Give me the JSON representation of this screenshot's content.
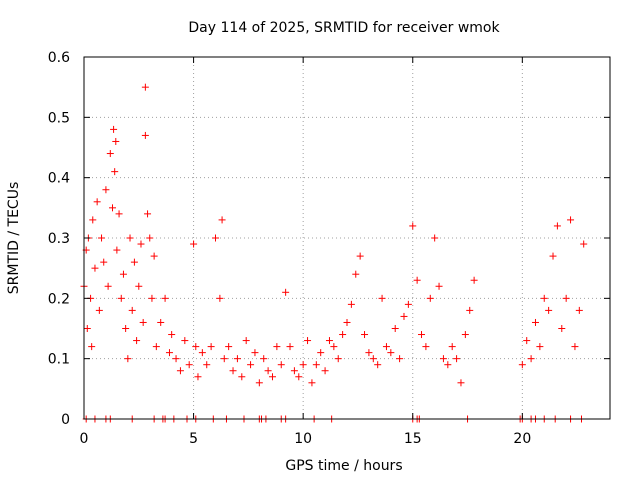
{
  "chart_data": {
    "type": "scatter",
    "title": "Day 114 of 2025, SRMTID for receiver wmok",
    "xlabel": "GPS time / hours",
    "ylabel": "SRMTID / TECUs",
    "xlim": [
      0,
      24
    ],
    "ylim": [
      0,
      0.6
    ],
    "xticks": [
      0,
      5,
      10,
      15,
      20
    ],
    "yticks": [
      0,
      0.1,
      0.2,
      0.3,
      0.4,
      0.5,
      0.6
    ],
    "xtick_labels": [
      "0",
      "5",
      "10",
      "15",
      "20"
    ],
    "ytick_labels": [
      "0",
      "0.1",
      "0.2",
      "0.3",
      "0.4",
      "0.5",
      "0.6"
    ],
    "grid": true,
    "marker": "+",
    "color": "#ff0000",
    "series": [
      {
        "name": "SRMTID",
        "x": [
          0.0,
          0.1,
          0.15,
          0.2,
          0.3,
          0.35,
          0.4,
          0.5,
          0.6,
          0.7,
          0.8,
          0.9,
          1.0,
          1.1,
          1.2,
          1.3,
          1.35,
          1.4,
          1.45,
          1.5,
          1.6,
          1.7,
          1.8,
          1.9,
          2.0,
          2.1,
          2.2,
          2.3,
          2.4,
          2.5,
          2.6,
          2.7,
          2.8,
          2.8,
          2.9,
          3.0,
          3.1,
          3.2,
          3.3,
          3.5,
          3.7,
          3.9,
          4.0,
          4.2,
          4.4,
          4.6,
          4.8,
          5.0,
          5.1,
          5.2,
          5.4,
          5.6,
          5.8,
          6.0,
          6.2,
          6.3,
          6.4,
          6.6,
          6.8,
          7.0,
          7.2,
          7.4,
          7.6,
          7.8,
          8.0,
          8.2,
          8.4,
          8.6,
          8.8,
          9.0,
          9.2,
          9.4,
          9.6,
          9.8,
          10.0,
          10.2,
          10.4,
          10.6,
          10.8,
          11.0,
          11.2,
          11.4,
          11.6,
          11.8,
          12.0,
          12.2,
          12.4,
          12.6,
          12.8,
          13.0,
          13.2,
          13.4,
          13.6,
          13.8,
          14.0,
          14.2,
          14.4,
          14.6,
          14.8,
          15.0,
          15.2,
          15.4,
          15.6,
          15.8,
          16.0,
          16.2,
          16.4,
          16.6,
          16.8,
          17.0,
          17.2,
          17.4,
          17.6,
          17.8,
          20.0,
          20.2,
          20.4,
          20.6,
          20.8,
          21.0,
          21.2,
          21.4,
          21.6,
          21.8,
          22.0,
          22.2,
          22.4,
          22.6,
          22.8
        ],
        "y": [
          0.22,
          0.28,
          0.15,
          0.3,
          0.2,
          0.12,
          0.33,
          0.25,
          0.36,
          0.18,
          0.3,
          0.26,
          0.38,
          0.22,
          0.44,
          0.35,
          0.48,
          0.41,
          0.46,
          0.28,
          0.34,
          0.2,
          0.24,
          0.15,
          0.1,
          0.3,
          0.18,
          0.26,
          0.13,
          0.22,
          0.29,
          0.16,
          0.55,
          0.47,
          0.34,
          0.3,
          0.2,
          0.27,
          0.12,
          0.16,
          0.2,
          0.11,
          0.14,
          0.1,
          0.08,
          0.13,
          0.09,
          0.29,
          0.12,
          0.07,
          0.11,
          0.09,
          0.12,
          0.3,
          0.2,
          0.33,
          0.1,
          0.12,
          0.08,
          0.1,
          0.07,
          0.13,
          0.09,
          0.11,
          0.06,
          0.1,
          0.08,
          0.07,
          0.12,
          0.09,
          0.21,
          0.12,
          0.08,
          0.07,
          0.09,
          0.13,
          0.06,
          0.09,
          0.11,
          0.08,
          0.13,
          0.12,
          0.1,
          0.14,
          0.16,
          0.19,
          0.24,
          0.27,
          0.14,
          0.11,
          0.1,
          0.09,
          0.2,
          0.12,
          0.11,
          0.15,
          0.1,
          0.17,
          0.19,
          0.32,
          0.23,
          0.14,
          0.12,
          0.2,
          0.3,
          0.22,
          0.1,
          0.09,
          0.12,
          0.1,
          0.06,
          0.14,
          0.18,
          0.23,
          0.09,
          0.13,
          0.1,
          0.16,
          0.12,
          0.2,
          0.18,
          0.27,
          0.32,
          0.15,
          0.2,
          0.33,
          0.12,
          0.18,
          0.29
        ]
      }
    ],
    "zero_ticks_x": [
      0.1,
      0.5,
      1.0,
      1.2,
      2.2,
      3.2,
      3.6,
      3.7,
      4.1,
      4.7,
      5.1,
      5.9,
      6.5,
      7.3,
      8.0,
      8.1,
      8.3,
      9.0,
      9.2,
      10.5,
      11.3,
      15.0,
      15.2,
      15.3,
      17.5,
      19.9,
      20.0,
      20.4,
      20.6,
      21.0,
      21.5,
      22.2,
      22.7
    ]
  }
}
